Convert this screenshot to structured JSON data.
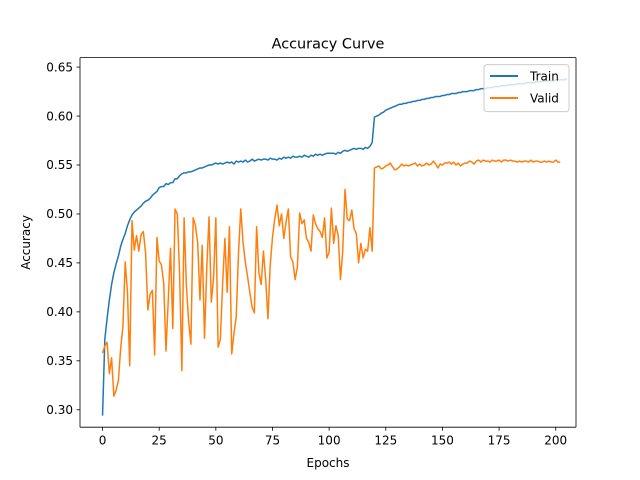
{
  "chart_data": {
    "type": "line",
    "title": "Accuracy Curve",
    "xlabel": "Epochs",
    "ylabel": "Accuracy",
    "xlim": [
      -9.95,
      208.95
    ],
    "ylim": [
      0.2822,
      0.6597
    ],
    "xticks": [
      0,
      25,
      50,
      75,
      100,
      125,
      150,
      175,
      200
    ],
    "yticks": [
      0.3,
      0.35,
      0.4,
      0.45,
      0.5,
      0.55,
      0.6,
      0.65
    ],
    "grid": false,
    "legend_position": "top-right",
    "series": [
      {
        "name": "Train",
        "color": "#1f77b4",
        "values": [
          0.294,
          0.372,
          0.393,
          0.412,
          0.428,
          0.44,
          0.449,
          0.457,
          0.467,
          0.474,
          0.48,
          0.488,
          0.494,
          0.499,
          0.502,
          0.504,
          0.506,
          0.508,
          0.511,
          0.513,
          0.514,
          0.516,
          0.519,
          0.521,
          0.523,
          0.527,
          0.528,
          0.528,
          0.531,
          0.53,
          0.532,
          0.532,
          0.536,
          0.536,
          0.539,
          0.541,
          0.542,
          0.542,
          0.543,
          0.543,
          0.544,
          0.545,
          0.546,
          0.547,
          0.547,
          0.548,
          0.549,
          0.55,
          0.55,
          0.551,
          0.552,
          0.551,
          0.552,
          0.551,
          0.552,
          0.553,
          0.552,
          0.553,
          0.551,
          0.554,
          0.553,
          0.554,
          0.553,
          0.555,
          0.553,
          0.554,
          0.556,
          0.554,
          0.555,
          0.556,
          0.555,
          0.556,
          0.556,
          0.555,
          0.557,
          0.556,
          0.556,
          0.555,
          0.557,
          0.556,
          0.558,
          0.557,
          0.558,
          0.557,
          0.559,
          0.558,
          0.558,
          0.559,
          0.558,
          0.56,
          0.559,
          0.558,
          0.56,
          0.559,
          0.561,
          0.56,
          0.561,
          0.56,
          0.561,
          0.562,
          0.562,
          0.562,
          0.562,
          0.561,
          0.563,
          0.562,
          0.564,
          0.565,
          0.564,
          0.565,
          0.566,
          0.567,
          0.566,
          0.567,
          0.567,
          0.566,
          0.568,
          0.567,
          0.569,
          0.573,
          0.599,
          0.6,
          0.601,
          0.603,
          0.604,
          0.606,
          0.607,
          0.608,
          0.609,
          0.61,
          0.611,
          0.612,
          0.612,
          0.613,
          0.613,
          0.614,
          0.614,
          0.615,
          0.615,
          0.616,
          0.616,
          0.617,
          0.617,
          0.618,
          0.618,
          0.619,
          0.619,
          0.62,
          0.62,
          0.62,
          0.621,
          0.621,
          0.622,
          0.622,
          0.623,
          0.623,
          0.623,
          0.624,
          0.624,
          0.625,
          0.625,
          0.625,
          0.626,
          0.626,
          0.626,
          0.627,
          0.627,
          0.628,
          0.628,
          0.628,
          0.629,
          0.629,
          0.629,
          0.63,
          0.63,
          0.63,
          0.631,
          0.631,
          0.631,
          0.632,
          0.632,
          0.632,
          0.632,
          0.633,
          0.633,
          0.633,
          0.633,
          0.634,
          0.634,
          0.634,
          0.634,
          0.635,
          0.635,
          0.635,
          0.635,
          0.636,
          0.636,
          0.636,
          0.636,
          0.636,
          0.637,
          0.637,
          0.637,
          0.637,
          0.637,
          0.638
        ]
      },
      {
        "name": "Valid",
        "color": "#ff7f0e",
        "values": [
          0.358,
          0.365,
          0.369,
          0.337,
          0.353,
          0.314,
          0.32,
          0.33,
          0.363,
          0.385,
          0.451,
          0.42,
          0.345,
          0.493,
          0.463,
          0.478,
          0.462,
          0.479,
          0.482,
          0.46,
          0.402,
          0.418,
          0.422,
          0.356,
          0.476,
          0.452,
          0.448,
          0.429,
          0.36,
          0.412,
          0.465,
          0.383,
          0.505,
          0.5,
          0.44,
          0.34,
          0.496,
          0.427,
          0.39,
          0.367,
          0.496,
          0.488,
          0.47,
          0.412,
          0.468,
          0.373,
          0.445,
          0.497,
          0.41,
          0.435,
          0.496,
          0.364,
          0.372,
          0.429,
          0.475,
          0.42,
          0.487,
          0.357,
          0.378,
          0.395,
          0.46,
          0.505,
          0.471,
          0.451,
          0.436,
          0.42,
          0.405,
          0.399,
          0.487,
          0.44,
          0.428,
          0.462,
          0.433,
          0.393,
          0.448,
          0.476,
          0.495,
          0.509,
          0.488,
          0.5,
          0.475,
          0.492,
          0.505,
          0.456,
          0.451,
          0.433,
          0.446,
          0.501,
          0.49,
          0.494,
          0.475,
          0.471,
          0.462,
          0.499,
          0.49,
          0.485,
          0.482,
          0.476,
          0.496,
          0.455,
          0.461,
          0.506,
          0.47,
          0.488,
          0.478,
          0.433,
          0.462,
          0.525,
          0.495,
          0.493,
          0.504,
          0.485,
          0.48,
          0.45,
          0.47,
          0.455,
          0.464,
          0.462,
          0.486,
          0.462,
          0.547,
          0.548,
          0.549,
          0.546,
          0.547,
          0.549,
          0.55,
          0.552,
          0.548,
          0.545,
          0.546,
          0.548,
          0.551,
          0.549,
          0.55,
          0.549,
          0.55,
          0.551,
          0.552,
          0.549,
          0.551,
          0.549,
          0.55,
          0.552,
          0.55,
          0.551,
          0.554,
          0.551,
          0.547,
          0.551,
          0.55,
          0.552,
          0.552,
          0.553,
          0.551,
          0.553,
          0.55,
          0.552,
          0.549,
          0.551,
          0.552,
          0.552,
          0.554,
          0.553,
          0.551,
          0.554,
          0.555,
          0.553,
          0.555,
          0.554,
          0.554,
          0.553,
          0.555,
          0.554,
          0.554,
          0.555,
          0.553,
          0.555,
          0.555,
          0.554,
          0.555,
          0.554,
          0.554,
          0.553,
          0.554,
          0.553,
          0.554,
          0.554,
          0.553,
          0.555,
          0.553,
          0.554,
          0.554,
          0.553,
          0.553,
          0.554,
          0.553,
          0.554,
          0.553,
          0.553,
          0.555,
          0.553,
          0.553
        ]
      }
    ]
  }
}
